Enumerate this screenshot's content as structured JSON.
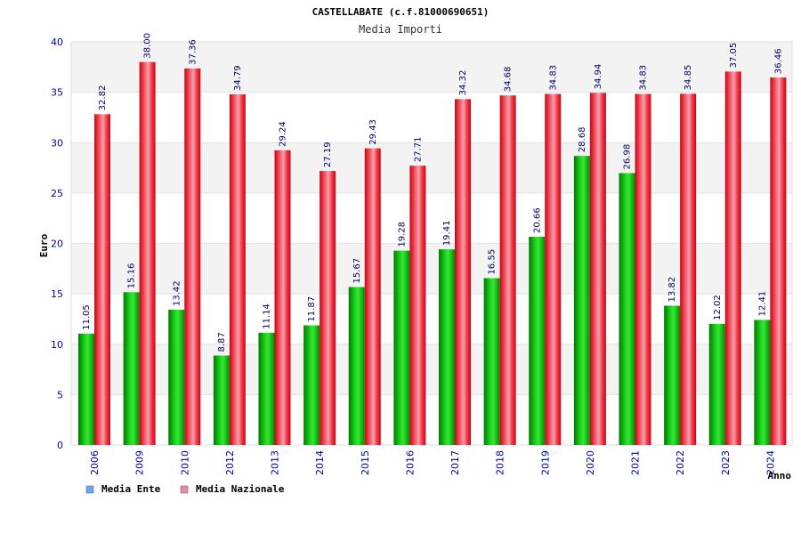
{
  "chart_data": {
    "type": "bar",
    "title": "CASTELLABATE (c.f.81000690651)",
    "subtitle": "Media Importi",
    "xlabel": "Anno",
    "ylabel": "Euro",
    "ylim": [
      0,
      40
    ],
    "yticks": [
      "0",
      "5",
      "10",
      "15",
      "20",
      "25",
      "30",
      "35",
      "40"
    ],
    "categories": [
      "2006",
      "2009",
      "2010",
      "2012",
      "2013",
      "2014",
      "2015",
      "2016",
      "2017",
      "2018",
      "2019",
      "2020",
      "2021",
      "2022",
      "2023",
      "2024"
    ],
    "series": [
      {
        "name": "Media Ente",
        "values": [
          11.05,
          15.16,
          13.42,
          8.87,
          11.14,
          11.87,
          15.67,
          19.28,
          19.41,
          16.55,
          20.66,
          28.68,
          26.98,
          13.82,
          12.02,
          12.41
        ],
        "labels": [
          "11.05",
          "15.16",
          "13.42",
          "8.87",
          "11.14",
          "11.87",
          "15.67",
          "19.28",
          "19.41",
          "16.55",
          "20.66",
          "28.68",
          "26.98",
          "13.82",
          "12.02",
          "12.41"
        ],
        "color": "#00b000",
        "legend_color": "#66aaff"
      },
      {
        "name": "Media Nazionale",
        "values": [
          32.82,
          38.0,
          37.36,
          34.79,
          29.24,
          27.19,
          29.43,
          27.71,
          34.32,
          34.68,
          34.83,
          34.94,
          34.83,
          34.85,
          37.05,
          36.46
        ],
        "labels": [
          "32.82",
          "38.00",
          "37.36",
          "34.79",
          "29.24",
          "27.19",
          "29.43",
          "27.71",
          "34.32",
          "34.68",
          "34.83",
          "34.94",
          "34.83",
          "34.85",
          "37.05",
          "36.46"
        ],
        "color": "#ee1122",
        "legend_color": "#ee88aa"
      }
    ],
    "legend_position": "bottom-left",
    "grid": true
  }
}
